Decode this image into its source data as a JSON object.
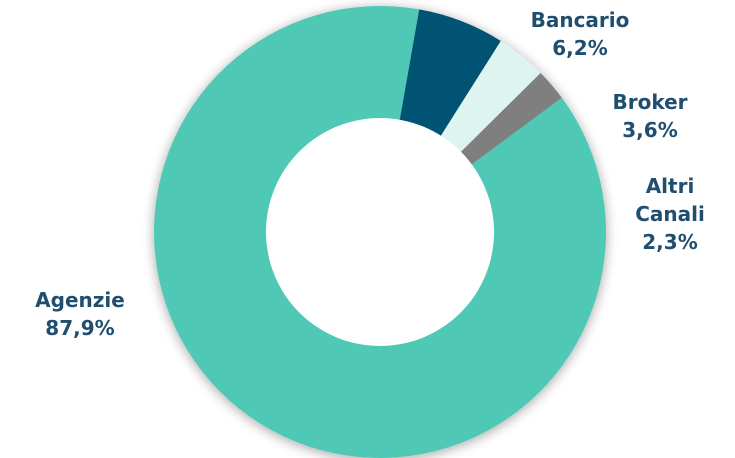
{
  "chart_data": {
    "type": "pie",
    "donut": true,
    "categories": [
      "Agenzie",
      "Bancario",
      "Broker",
      "Altri Canali"
    ],
    "values": [
      87.9,
      6.2,
      3.6,
      2.3
    ],
    "value_labels": [
      "87,9%",
      "6,2%",
      "3,6%",
      "2,3%"
    ],
    "label_lines": [
      [
        "Agenzie"
      ],
      [
        "Bancario"
      ],
      [
        "Broker"
      ],
      [
        "Altri",
        "Canali"
      ]
    ],
    "colors": [
      "#4fc8b5",
      "#005273",
      "#ddf4f0",
      "#7f7f7f"
    ],
    "label_color": "#1f4e6e",
    "title": "",
    "legend": "none"
  }
}
